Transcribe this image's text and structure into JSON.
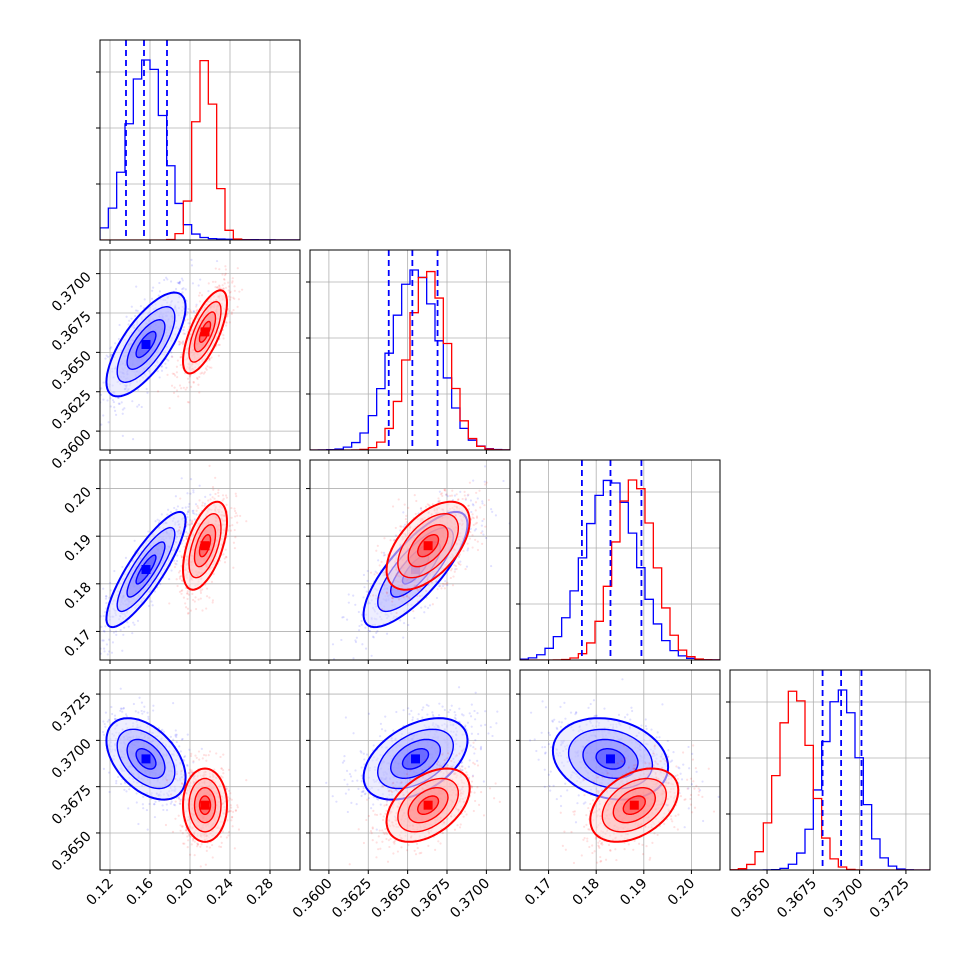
{
  "chart_data": {
    "type": "corner",
    "parameters": 4,
    "series": [
      {
        "name": "",
        "color": "#0000ff",
        "mean": [
          0.156,
          0.3655,
          0.183,
          0.369
        ],
        "sd": [
          0.018,
          0.0015,
          0.0055,
          0.001
        ],
        "quantile_lines": true
      },
      {
        "name": "",
        "color": "#ff0000",
        "mean": [
          0.215,
          0.3663,
          0.188,
          0.3665
        ],
        "sd": [
          0.01,
          0.0012,
          0.0042,
          0.0009
        ],
        "quantile_lines": false
      }
    ],
    "quantiles_blue": [
      [
        0.136,
        0.154,
        0.177
      ],
      [
        0.3638,
        0.3653,
        0.3669
      ],
      [
        0.177,
        0.183,
        0.1895
      ],
      [
        0.368,
        0.369,
        0.3701
      ]
    ],
    "correlations": {
      "1-0": [
        0.72,
        0.7
      ],
      "2-0": [
        0.85,
        0.55
      ],
      "2-1": [
        0.78,
        0.55
      ],
      "3-0": [
        -0.45,
        0.0
      ],
      "3-1": [
        0.45,
        0.45
      ],
      "3-2": [
        -0.2,
        0.4
      ]
    },
    "axes": [
      {
        "range": [
          0.11,
          0.31
        ],
        "ticks": [
          "0.12",
          "0.16",
          "0.20",
          "0.24",
          "0.28"
        ]
      },
      {
        "range": [
          0.3588,
          0.3715
        ],
        "ticks": [
          "0.3600",
          "0.3625",
          "0.3650",
          "0.3675",
          "0.3700"
        ]
      },
      {
        "range": [
          0.164,
          0.206
        ],
        "ticks": [
          "0.17",
          "0.18",
          "0.19",
          "0.20"
        ]
      },
      {
        "range": [
          0.363,
          0.3738
        ],
        "ticks": [
          "0.3650",
          "0.3675",
          "0.3700",
          "0.3725"
        ]
      }
    ],
    "grid": true,
    "histogram_bins": 24,
    "legend": "none"
  }
}
